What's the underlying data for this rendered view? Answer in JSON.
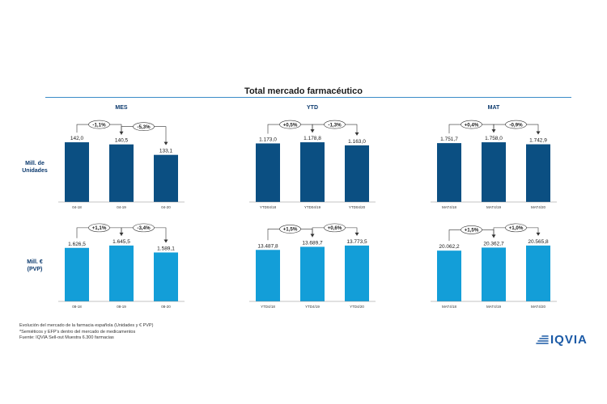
{
  "title": "Total mercado farmacéutico",
  "row_labels": [
    "Mill. de\nUnidades",
    "Mill. €\n(PVP)"
  ],
  "footnotes": [
    "Evolución del mercado de la farmacia española (Unidades y € PVP)",
    "*Semiéticos y EFP's dentro del mercado de medicamentos",
    "Fuente: IQVIA Sell-out Muestra 6.300 farmacias"
  ],
  "logo": {
    "text": "IQVIA",
    "icon": "iqvia-logo-icon",
    "color": "#1b5aa6"
  },
  "colors": {
    "units_bar": "#0b4f82",
    "values_bar": "#139ed8",
    "rule": "#3a8cc8"
  },
  "chart_data": [
    {
      "type": "bar",
      "title": "MES",
      "row": "Mill. de Unidades",
      "categories": [
        "04-18",
        "04-19",
        "04-20"
      ],
      "values": [
        142.0,
        140.5,
        133.1
      ],
      "value_labels": [
        "142,0",
        "140,5",
        "133,1"
      ],
      "changes": [
        "-1,1%",
        "-5,3%"
      ]
    },
    {
      "type": "bar",
      "title": "YTD",
      "row": "Mill. de Unidades",
      "categories": [
        "YTD04/18",
        "YTD04/19",
        "YTD04/20"
      ],
      "values": [
        1173.0,
        1178.8,
        1163.0
      ],
      "value_labels": [
        "1.173,0",
        "1.178,8",
        "1.163,0"
      ],
      "changes": [
        "+0,5%",
        "-1,3%"
      ]
    },
    {
      "type": "bar",
      "title": "MAT",
      "row": "Mill. de Unidades",
      "categories": [
        "MAT4/18",
        "MAT4/19",
        "MAT4/20"
      ],
      "values": [
        1751.7,
        1758.0,
        1742.9
      ],
      "value_labels": [
        "1.751,7",
        "1.758,0",
        "1.742,9"
      ],
      "changes": [
        "+0,4%",
        "-0,9%"
      ]
    },
    {
      "type": "bar",
      "title": "",
      "row": "Mill. € (PVP)",
      "categories": [
        "08-18",
        "08-19",
        "08-20"
      ],
      "values": [
        1626.5,
        1645.5,
        1589.1
      ],
      "value_labels": [
        "1.626,5",
        "1.645,5",
        "1.589,1"
      ],
      "changes": [
        "+1,1%",
        "-3,4%"
      ]
    },
    {
      "type": "bar",
      "title": "",
      "row": "Mill. € (PVP)",
      "categories": [
        "YTD4/18",
        "YTD4/19",
        "YTD4/20"
      ],
      "values": [
        13487.8,
        13689.7,
        13773.5
      ],
      "value_labels": [
        "13.487,8",
        "13.689,7",
        "13.773,5"
      ],
      "changes": [
        "+1,5%",
        "+0,6%"
      ]
    },
    {
      "type": "bar",
      "title": "",
      "row": "Mill. € (PVP)",
      "categories": [
        "MAT4/18",
        "MAT4/19",
        "MAT4/20"
      ],
      "values": [
        20062.2,
        20362.7,
        20565.8
      ],
      "value_labels": [
        "20.062,2",
        "20.362,7",
        "20.565,8"
      ],
      "changes": [
        "+1,5%",
        "+1,0%"
      ]
    }
  ]
}
